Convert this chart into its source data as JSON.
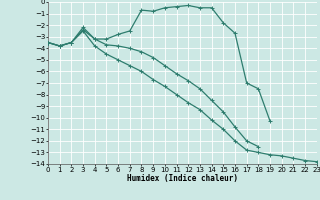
{
  "xlabel": "Humidex (Indice chaleur)",
  "background_color": "#cce8e4",
  "grid_color": "#ffffff",
  "line_color": "#2e7d6e",
  "xlim": [
    0,
    23
  ],
  "ylim": [
    -14,
    0
  ],
  "xticks": [
    0,
    1,
    2,
    3,
    4,
    5,
    6,
    7,
    8,
    9,
    10,
    11,
    12,
    13,
    14,
    15,
    16,
    17,
    18,
    19,
    20,
    21,
    22,
    23
  ],
  "yticks": [
    0,
    -1,
    -2,
    -3,
    -4,
    -5,
    -6,
    -7,
    -8,
    -9,
    -10,
    -11,
    -12,
    -13,
    -14
  ],
  "curve1_x": [
    0,
    1,
    2,
    3,
    4,
    5,
    6,
    7,
    8,
    9,
    10,
    11,
    12,
    13,
    14,
    15,
    16,
    17,
    18,
    19
  ],
  "curve1_y": [
    -3.5,
    -3.8,
    -3.5,
    -2.2,
    -3.2,
    -3.2,
    -2.8,
    -2.5,
    -0.7,
    -0.8,
    -0.5,
    -0.4,
    -0.3,
    -0.5,
    -0.5,
    -1.8,
    -2.7,
    -7.0,
    -7.5,
    -10.3
  ],
  "curve2_x": [
    0,
    1,
    2,
    3,
    4,
    5,
    6,
    7,
    8,
    9,
    10,
    11,
    12,
    13,
    14,
    15,
    16,
    17,
    18
  ],
  "curve2_y": [
    -3.5,
    -3.8,
    -3.5,
    -2.4,
    -3.2,
    -3.7,
    -3.8,
    -4.0,
    -4.3,
    -4.8,
    -5.5,
    -6.2,
    -6.8,
    -7.5,
    -8.5,
    -9.5,
    -10.8,
    -12.0,
    -12.5
  ],
  "curve3_x": [
    0,
    1,
    2,
    3,
    4,
    5,
    6,
    7,
    8,
    9,
    10,
    11,
    12,
    13,
    14,
    15,
    16,
    17,
    18,
    19,
    20,
    21,
    22,
    23
  ],
  "curve3_y": [
    -3.5,
    -3.8,
    -3.5,
    -2.5,
    -3.8,
    -4.5,
    -5.0,
    -5.5,
    -6.0,
    -6.7,
    -7.3,
    -8.0,
    -8.7,
    -9.3,
    -10.2,
    -11.0,
    -12.0,
    -12.8,
    -13.0,
    -13.2,
    -13.3,
    -13.5,
    -13.7,
    -13.8
  ],
  "tick_fontsize": 5,
  "xlabel_fontsize": 5.5,
  "marker_size": 2.5,
  "linewidth": 0.9
}
